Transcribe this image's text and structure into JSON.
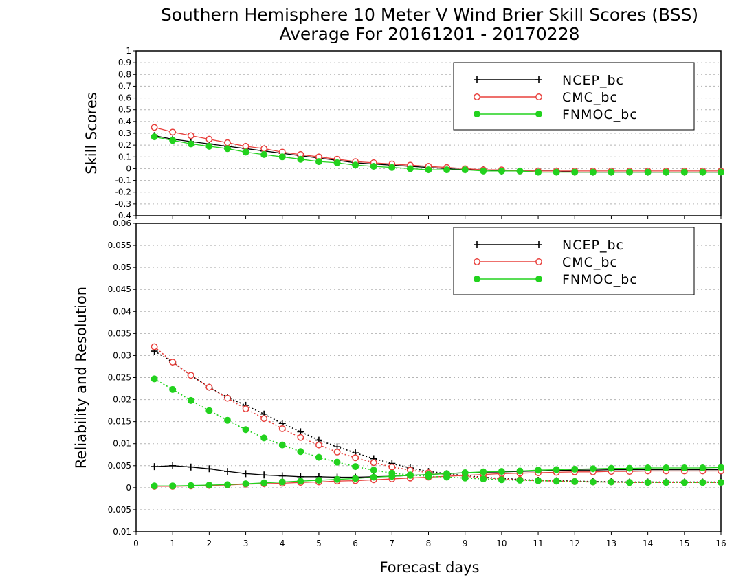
{
  "title_line1": "Southern Hemisphere 10 Meter V Wind Brier Skill Scores (BSS)",
  "title_line2": "Average For 20161201 - 20170228",
  "xlabel": "Forecast days",
  "colors": {
    "NCEP_bc": "#000000",
    "CMC_bc": "#e8403c",
    "FNMOC_bc": "#22d21e"
  },
  "chart_data": [
    {
      "type": "line",
      "ylabel": "Skill Scores",
      "xlim": [
        0,
        16
      ],
      "ylim": [
        -0.4,
        1
      ],
      "x_ticks": [
        0,
        1,
        2,
        3,
        4,
        5,
        6,
        7,
        8,
        9,
        10,
        11,
        12,
        13,
        14,
        15,
        16
      ],
      "y_ticks": [
        -0.4,
        -0.3,
        -0.2,
        -0.1,
        0,
        0.1,
        0.2,
        0.3,
        0.4,
        0.5,
        0.6,
        0.7,
        0.8,
        0.9,
        1
      ],
      "y_tick_labels": [
        "-0.4",
        "-0.3",
        "-0.2",
        "-0.1",
        "0",
        "0.1",
        "0.2",
        "0.3",
        "0.4",
        "0.5",
        "0.6",
        "0.7",
        "0.8",
        "0.9",
        "1"
      ],
      "grid": true,
      "legend": "top-right",
      "x": [
        0.5,
        1,
        1.5,
        2,
        2.5,
        3,
        3.5,
        4,
        4.5,
        5,
        5.5,
        6,
        6.5,
        7,
        7.5,
        8,
        8.5,
        9,
        9.5,
        10,
        10.5,
        11,
        11.5,
        12,
        12.5,
        13,
        13.5,
        14,
        14.5,
        15,
        15.5,
        16
      ],
      "series": [
        {
          "name": "NCEP_bc",
          "style": "solid",
          "marker": "plus",
          "values": [
            0.28,
            0.25,
            0.23,
            0.21,
            0.19,
            0.17,
            0.15,
            0.13,
            0.11,
            0.09,
            0.07,
            0.05,
            0.04,
            0.03,
            0.02,
            0.01,
            0.0,
            -0.01,
            -0.01,
            -0.02,
            -0.02,
            -0.02,
            -0.02,
            -0.03,
            -0.03,
            -0.03,
            -0.03,
            -0.03,
            -0.03,
            -0.03,
            -0.03,
            -0.03
          ]
        },
        {
          "name": "CMC_bc",
          "style": "solid",
          "marker": "open-circle",
          "values": [
            0.35,
            0.31,
            0.28,
            0.25,
            0.22,
            0.19,
            0.17,
            0.14,
            0.12,
            0.1,
            0.08,
            0.06,
            0.05,
            0.04,
            0.03,
            0.02,
            0.01,
            0.0,
            -0.01,
            -0.01,
            -0.02,
            -0.02,
            -0.02,
            -0.02,
            -0.02,
            -0.02,
            -0.02,
            -0.02,
            -0.02,
            -0.02,
            -0.02,
            -0.02
          ]
        },
        {
          "name": "FNMOC_bc",
          "style": "solid",
          "marker": "filled-circle",
          "values": [
            0.27,
            0.24,
            0.21,
            0.19,
            0.17,
            0.14,
            0.12,
            0.1,
            0.08,
            0.06,
            0.05,
            0.03,
            0.02,
            0.01,
            0.0,
            -0.01,
            -0.01,
            -0.01,
            -0.02,
            -0.02,
            -0.02,
            -0.03,
            -0.03,
            -0.03,
            -0.03,
            -0.03,
            -0.03,
            -0.03,
            -0.03,
            -0.03,
            -0.03,
            -0.03
          ]
        }
      ]
    },
    {
      "type": "line",
      "ylabel": "Reliability and Resolution",
      "xlim": [
        0,
        16
      ],
      "ylim": [
        -0.01,
        0.06
      ],
      "x_ticks": [
        0,
        1,
        2,
        3,
        4,
        5,
        6,
        7,
        8,
        9,
        10,
        11,
        12,
        13,
        14,
        15,
        16
      ],
      "y_ticks": [
        -0.01,
        -0.005,
        0,
        0.005,
        0.01,
        0.015,
        0.02,
        0.025,
        0.03,
        0.035,
        0.04,
        0.045,
        0.05,
        0.055,
        0.06
      ],
      "y_tick_labels": [
        "-0.01",
        "-0.005",
        "0",
        "0.005",
        "0.01",
        "0.015",
        "0.02",
        "0.025",
        "0.03",
        "0.035",
        "0.04",
        "0.045",
        "0.05",
        "0.055",
        "0.06"
      ],
      "grid": true,
      "legend": "top-right",
      "x": [
        0.5,
        1,
        1.5,
        2,
        2.5,
        3,
        3.5,
        4,
        4.5,
        5,
        5.5,
        6,
        6.5,
        7,
        7.5,
        8,
        8.5,
        9,
        9.5,
        10,
        10.5,
        11,
        11.5,
        12,
        12.5,
        13,
        13.5,
        14,
        14.5,
        15,
        15.5,
        16
      ],
      "series": [
        {
          "name": "NCEP_bc",
          "component": "reliability",
          "style": "solid",
          "marker": "plus",
          "values": [
            0.0048,
            0.005,
            0.0047,
            0.0043,
            0.0037,
            0.0032,
            0.0029,
            0.0027,
            0.0025,
            0.0025,
            0.0024,
            0.0024,
            0.0025,
            0.0026,
            0.0028,
            0.003,
            0.0032,
            0.0034,
            0.0035,
            0.0036,
            0.0037,
            0.0038,
            0.0039,
            0.004,
            0.004,
            0.0041,
            0.0041,
            0.0041,
            0.0041,
            0.0041,
            0.0041,
            0.0041
          ]
        },
        {
          "name": "NCEP_bc",
          "component": "resolution",
          "style": "dotted",
          "marker": "plus",
          "values": [
            0.031,
            0.0285,
            0.0255,
            0.0228,
            0.0205,
            0.0187,
            0.0167,
            0.0146,
            0.0127,
            0.0108,
            0.0093,
            0.0079,
            0.0066,
            0.0055,
            0.0045,
            0.0037,
            0.0032,
            0.0027,
            0.0024,
            0.0021,
            0.0019,
            0.0017,
            0.0016,
            0.0015,
            0.0014,
            0.0014,
            0.0013,
            0.0013,
            0.0013,
            0.0013,
            0.0013,
            0.0013
          ]
        },
        {
          "name": "CMC_bc",
          "component": "reliability",
          "style": "solid",
          "marker": "open-circle",
          "values": [
            0.0003,
            0.0003,
            0.0004,
            0.0005,
            0.0006,
            0.0008,
            0.0009,
            0.001,
            0.0012,
            0.0013,
            0.0015,
            0.0016,
            0.0018,
            0.002,
            0.0022,
            0.0024,
            0.0026,
            0.0028,
            0.003,
            0.0032,
            0.0033,
            0.0034,
            0.0035,
            0.0036,
            0.0036,
            0.0037,
            0.0037,
            0.0038,
            0.0038,
            0.0038,
            0.0038,
            0.0038
          ]
        },
        {
          "name": "CMC_bc",
          "component": "resolution",
          "style": "dotted",
          "marker": "open-circle",
          "values": [
            0.032,
            0.0285,
            0.0255,
            0.0228,
            0.0203,
            0.0179,
            0.0157,
            0.0134,
            0.0114,
            0.0097,
            0.0081,
            0.0068,
            0.0057,
            0.0047,
            0.004,
            0.0034,
            0.003,
            0.0026,
            0.0023,
            0.002,
            0.0018,
            0.0016,
            0.0015,
            0.0014,
            0.0013,
            0.0013,
            0.0012,
            0.0012,
            0.0012,
            0.0012,
            0.0012,
            0.0012
          ]
        },
        {
          "name": "FNMOC_bc",
          "component": "reliability",
          "style": "solid",
          "marker": "filled-circle",
          "values": [
            0.0004,
            0.0004,
            0.0005,
            0.0006,
            0.0007,
            0.0009,
            0.0011,
            0.0013,
            0.0015,
            0.0017,
            0.0019,
            0.0021,
            0.0024,
            0.0026,
            0.0028,
            0.003,
            0.0032,
            0.0034,
            0.0036,
            0.0037,
            0.0038,
            0.004,
            0.0041,
            0.0042,
            0.0043,
            0.0044,
            0.0044,
            0.0045,
            0.0045,
            0.0045,
            0.0045,
            0.0046
          ]
        },
        {
          "name": "FNMOC_bc",
          "component": "resolution",
          "style": "dotted",
          "marker": "filled-circle",
          "values": [
            0.0247,
            0.0223,
            0.0198,
            0.0175,
            0.0153,
            0.0132,
            0.0113,
            0.0097,
            0.0082,
            0.0069,
            0.0058,
            0.0048,
            0.004,
            0.0033,
            0.0029,
            0.0026,
            0.0024,
            0.0022,
            0.002,
            0.0018,
            0.0017,
            0.0016,
            0.0015,
            0.0014,
            0.0013,
            0.0013,
            0.0012,
            0.0012,
            0.0012,
            0.0012,
            0.0012,
            0.0012
          ]
        }
      ]
    }
  ]
}
